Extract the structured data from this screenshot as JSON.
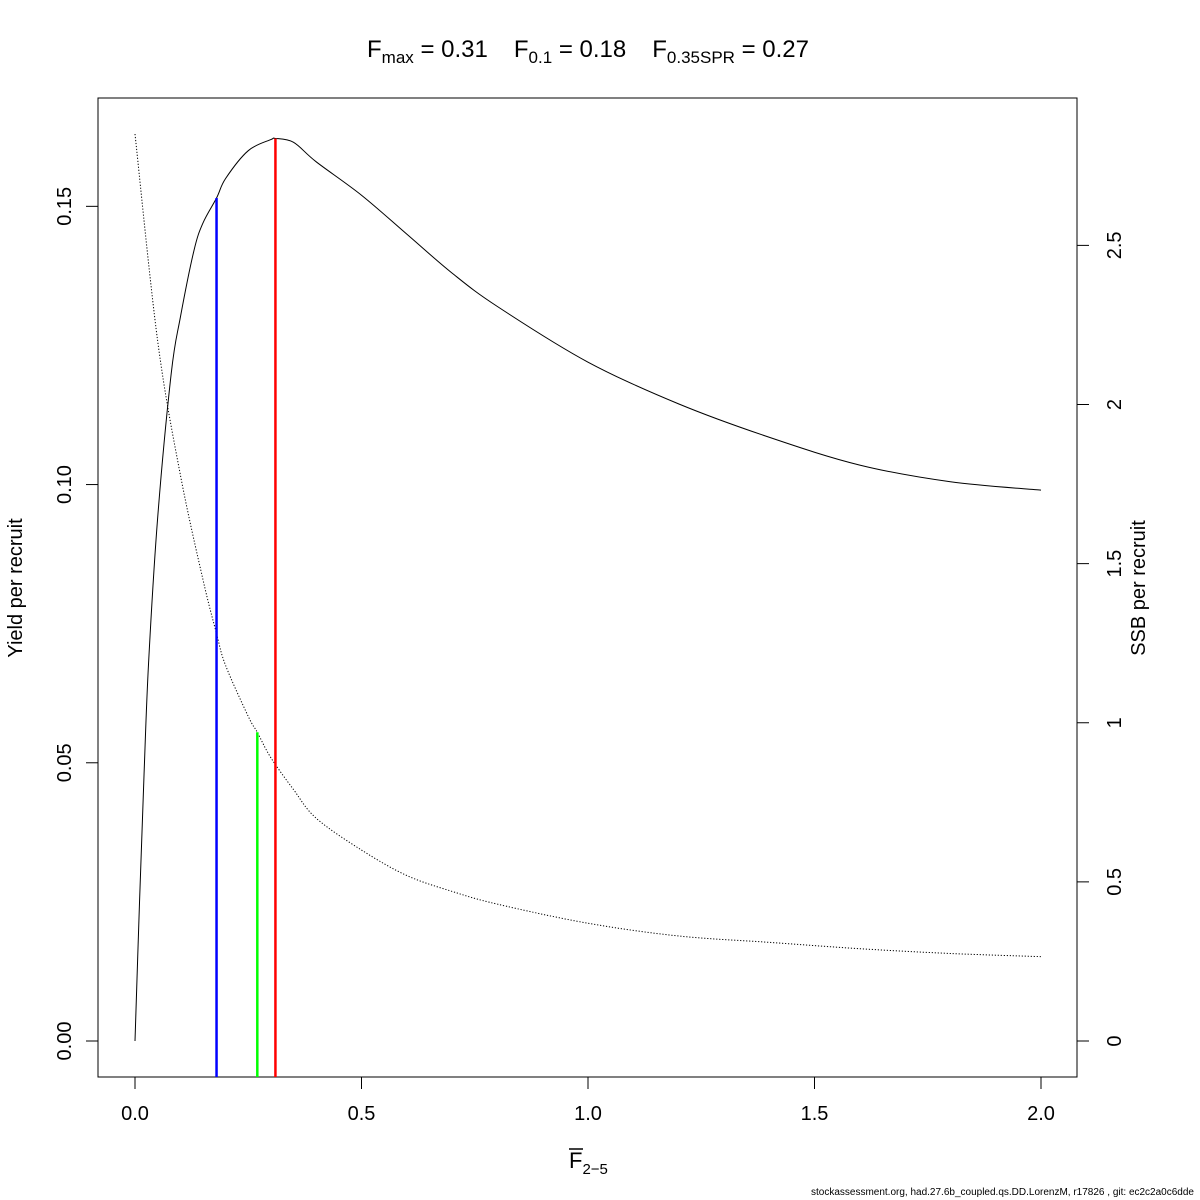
{
  "title_parts": {
    "fmax_symbol": "F",
    "fmax_sub": "max",
    "fmax_value": " = 0.31",
    "f01_symbol": "F",
    "f01_sub": "0.1",
    "f01_value": " = 0.18",
    "fspr_symbol": "F",
    "fspr_sub": "0.35SPR",
    "fspr_value": " = 0.27"
  },
  "xlabel_parts": {
    "symbol": "F",
    "sub": "2−5"
  },
  "footer": "stockassessment.org, had.27.6b_coupled.qs.DD.LorenzM, r17826 , git: ec2c2a0c6dde",
  "colors": {
    "fmax": "#ff0000",
    "f01": "#0000ff",
    "fspr": "#00ff00",
    "curve": "#000000"
  },
  "chart_data": {
    "type": "line",
    "xlabel": "F̅ 2−5",
    "ylabel_left": "Yield per recruit",
    "ylabel_right": "SSB per recruit",
    "xlim": [
      0,
      2
    ],
    "ylim_left": [
      0,
      0.163
    ],
    "ylim_right": [
      0,
      2.85
    ],
    "x_ticks": [
      "0.0",
      "0.5",
      "1.0",
      "1.5",
      "2.0"
    ],
    "y_left_ticks": [
      "0.00",
      "0.05",
      "0.10",
      "0.15"
    ],
    "y_right_ticks": [
      "0",
      "0.5",
      "1",
      "1.5",
      "2",
      "2.5"
    ],
    "series": [
      {
        "axis": "left",
        "style": "solid",
        "x": [
          0,
          0.01,
          0.02,
          0.03,
          0.05,
          0.08,
          0.1,
          0.13,
          0.15,
          0.18,
          0.2,
          0.25,
          0.3,
          0.31,
          0.35,
          0.4,
          0.5,
          0.6,
          0.7,
          0.8,
          1.0,
          1.2,
          1.4,
          1.6,
          1.8,
          2.0
        ],
        "y": [
          0,
          0.025,
          0.048,
          0.068,
          0.094,
          0.12,
          0.13,
          0.142,
          0.147,
          0.1515,
          0.155,
          0.16,
          0.162,
          0.1622,
          0.1615,
          0.158,
          0.152,
          0.145,
          0.138,
          0.132,
          0.122,
          0.1145,
          0.1085,
          0.1035,
          0.1005,
          0.099
        ]
      },
      {
        "axis": "right",
        "style": "dotted",
        "x": [
          0,
          0.05,
          0.1,
          0.15,
          0.18,
          0.2,
          0.25,
          0.27,
          0.3,
          0.35,
          0.4,
          0.5,
          0.6,
          0.7,
          0.8,
          1.0,
          1.2,
          1.4,
          1.6,
          1.8,
          2.0
        ],
        "y": [
          2.85,
          2.2,
          1.78,
          1.45,
          1.28,
          1.18,
          1.02,
          0.97,
          0.89,
          0.79,
          0.7,
          0.6,
          0.52,
          0.47,
          0.43,
          0.37,
          0.33,
          0.31,
          0.29,
          0.275,
          0.265
        ]
      }
    ],
    "reference_lines": [
      {
        "name": "F0.1",
        "x": 0.18,
        "y": 0.1515,
        "axis": "left",
        "color": "#0000ff"
      },
      {
        "name": "F0.35SPR",
        "x": 0.27,
        "y": 0.97,
        "axis": "right",
        "color": "#00ff00"
      },
      {
        "name": "Fmax",
        "x": 0.31,
        "y": 0.1622,
        "axis": "left",
        "color": "#ff0000"
      }
    ]
  }
}
